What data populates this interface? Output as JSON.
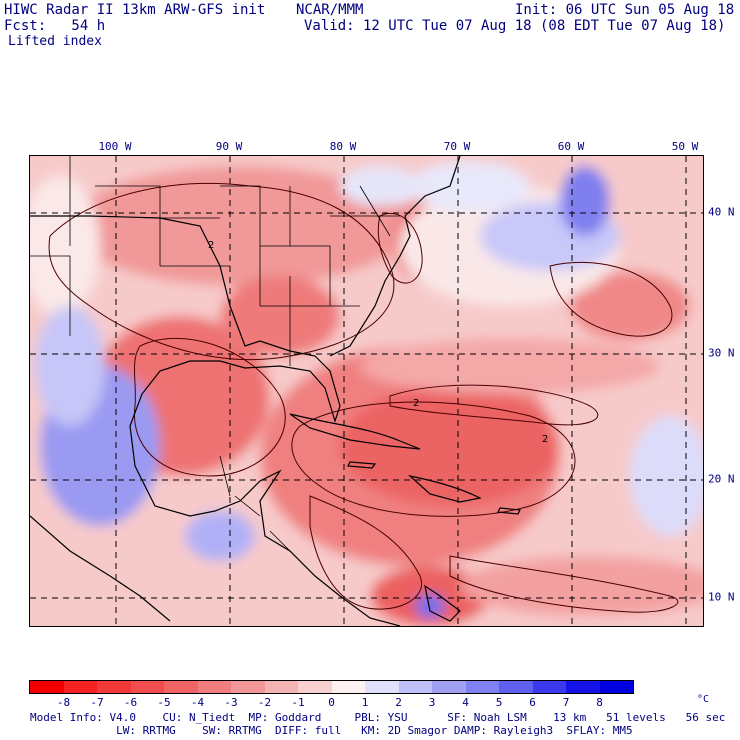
{
  "header": {
    "model": "HIWC Radar II 13km ARW-GFS init",
    "org": "NCAR/MMM",
    "init": "Init: 06 UTC Sun 05 Aug 18",
    "fcst": "Fcst:   54 h",
    "valid": "Valid: 12 UTC Tue 07 Aug 18 (08 EDT Tue 07 Aug 18)",
    "field": "Lifted index"
  },
  "map": {
    "lon_labels": [
      "100 W",
      "90 W",
      "80 W",
      "70 W",
      "60 W",
      "50 W"
    ],
    "lat_labels": [
      "40 N",
      "30 N",
      "20 N",
      "10 N"
    ],
    "contour_label": "2"
  },
  "colorbar": {
    "labels": [
      "-8",
      "-7",
      "-6",
      "-5",
      "-4",
      "-3",
      "-2",
      "-1",
      "0",
      "1",
      "2",
      "3",
      "4",
      "5",
      "6",
      "7",
      "8"
    ],
    "unit": "°C",
    "colors": [
      "#f00000",
      "#f52020",
      "#f23a3a",
      "#f04e4e",
      "#ef6464",
      "#f07e7e",
      "#f29898",
      "#f5b4b4",
      "#f8d0d0",
      "#fdf0f0",
      "#e0e0fb",
      "#c0c0f8",
      "#a0a0f5",
      "#8080f2",
      "#6060ef",
      "#3a3aec",
      "#1414e8",
      "#0000e0"
    ]
  },
  "footer": {
    "line1": "Model Info: V4.0    CU: N_Tiedt  MP: Goddard     PBL: YSU      SF: Noah LSM    13 km   51 levels   56 sec",
    "line2": "             LW: RRTMG    SW: RRTMG  DIFF: full   KM: 2D Smagor DAMP: Rayleigh3  SFLAY: MM5"
  },
  "colors": {
    "text": "#000080",
    "border": "#000000"
  }
}
